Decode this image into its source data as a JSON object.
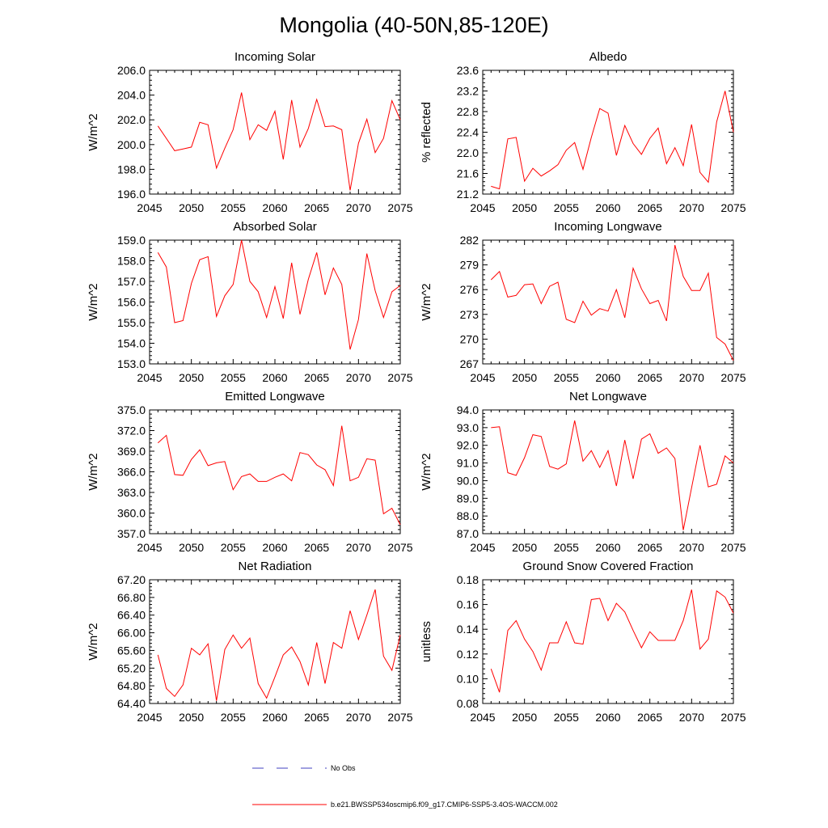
{
  "title": "Mongolia (40-50N,85-120E)",
  "colors": {
    "series": "#ff0000",
    "obs": "#4040c0",
    "axis": "#000000"
  },
  "legend": {
    "obs_label": "No Obs",
    "model_label": "b.e21.BWSSP534oscmip6.f09_g17.CMIP6-SSP5-3.4OS-WACCM.002"
  },
  "chart_data": [
    {
      "type": "line",
      "title": "Incoming Solar",
      "ylabel": "W/m^2",
      "xlim": [
        2045,
        2075
      ],
      "ylim": [
        196,
        206
      ],
      "yticks": [
        "196.0",
        "198.0",
        "200.0",
        "202.0",
        "204.0",
        "206.0"
      ],
      "xticks": [
        "2045",
        "2050",
        "2055",
        "2060",
        "2065",
        "2070",
        "2075"
      ],
      "x": [
        2046,
        2047,
        2048,
        2049,
        2050,
        2051,
        2052,
        2053,
        2054,
        2055,
        2056,
        2057,
        2058,
        2059,
        2060,
        2061,
        2062,
        2063,
        2064,
        2065,
        2066,
        2067,
        2068,
        2069,
        2070,
        2071,
        2072,
        2073,
        2074,
        2075
      ],
      "values": [
        201.5,
        200.5,
        199.5,
        199.65,
        199.8,
        201.8,
        201.6,
        198.1,
        199.7,
        201.2,
        204.2,
        200.4,
        201.6,
        201.15,
        202.7,
        198.8,
        203.6,
        199.8,
        201.3,
        203.65,
        201.45,
        201.5,
        201.2,
        196.3,
        200.1,
        202.05,
        199.35,
        200.5,
        203.55,
        202.0
      ]
    },
    {
      "type": "line",
      "title": "Albedo",
      "ylabel": "% reflected",
      "xlim": [
        2045,
        2075
      ],
      "ylim": [
        21.2,
        23.6
      ],
      "yticks": [
        "21.2",
        "21.6",
        "22.0",
        "22.4",
        "22.8",
        "23.2",
        "23.6"
      ],
      "xticks": [
        "2045",
        "2050",
        "2055",
        "2060",
        "2065",
        "2070",
        "2075"
      ],
      "x": [
        2046,
        2047,
        2048,
        2049,
        2050,
        2051,
        2052,
        2053,
        2054,
        2055,
        2056,
        2057,
        2058,
        2059,
        2060,
        2061,
        2062,
        2063,
        2064,
        2065,
        2066,
        2067,
        2068,
        2069,
        2070,
        2071,
        2072,
        2073,
        2074,
        2075
      ],
      "values": [
        21.35,
        21.3,
        22.27,
        22.3,
        21.45,
        21.7,
        21.55,
        21.65,
        21.77,
        22.05,
        22.2,
        21.68,
        22.3,
        22.86,
        22.77,
        21.95,
        22.53,
        22.18,
        21.97,
        22.28,
        22.48,
        21.79,
        22.1,
        21.75,
        22.55,
        21.62,
        21.43,
        22.6,
        23.2,
        22.4
      ]
    },
    {
      "type": "line",
      "title": "Absorbed Solar",
      "ylabel": "W/m^2",
      "xlim": [
        2045,
        2075
      ],
      "ylim": [
        153,
        159
      ],
      "yticks": [
        "153.0",
        "154.0",
        "155.0",
        "156.0",
        "157.0",
        "158.0",
        "159.0"
      ],
      "xticks": [
        "2045",
        "2050",
        "2055",
        "2060",
        "2065",
        "2070",
        "2075"
      ],
      "x": [
        2046,
        2047,
        2048,
        2049,
        2050,
        2051,
        2052,
        2053,
        2054,
        2055,
        2056,
        2057,
        2058,
        2059,
        2060,
        2061,
        2062,
        2063,
        2064,
        2065,
        2066,
        2067,
        2068,
        2069,
        2070,
        2071,
        2072,
        2073,
        2074,
        2075
      ],
      "values": [
        158.4,
        157.7,
        155.0,
        155.1,
        156.9,
        158.05,
        158.2,
        155.3,
        156.3,
        156.85,
        159.0,
        157.0,
        156.5,
        155.25,
        156.75,
        155.2,
        157.9,
        155.4,
        157.1,
        158.4,
        156.35,
        157.65,
        156.85,
        153.7,
        155.15,
        158.35,
        156.55,
        155.25,
        156.5,
        156.8
      ]
    },
    {
      "type": "line",
      "title": "Incoming Longwave",
      "ylabel": "W/m^2",
      "xlim": [
        2045,
        2075
      ],
      "ylim": [
        267,
        282
      ],
      "yticks": [
        "267",
        "270",
        "273",
        "276",
        "279",
        "282"
      ],
      "xticks": [
        "2045",
        "2050",
        "2055",
        "2060",
        "2065",
        "2070",
        "2075"
      ],
      "x": [
        2046,
        2047,
        2048,
        2049,
        2050,
        2051,
        2052,
        2053,
        2054,
        2055,
        2056,
        2057,
        2058,
        2059,
        2060,
        2061,
        2062,
        2063,
        2064,
        2065,
        2066,
        2067,
        2068,
        2069,
        2070,
        2071,
        2072,
        2073,
        2074,
        2075
      ],
      "values": [
        277.2,
        278.2,
        275.1,
        275.3,
        276.6,
        276.7,
        274.3,
        276.4,
        276.9,
        272.4,
        272.0,
        274.6,
        272.9,
        273.7,
        273.4,
        276.0,
        272.6,
        278.6,
        276.1,
        274.3,
        274.7,
        272.2,
        281.4,
        277.6,
        275.9,
        275.9,
        278.0,
        270.2,
        269.4,
        267.4
      ]
    },
    {
      "type": "line",
      "title": "Emitted Longwave",
      "ylabel": "W/m^2",
      "xlim": [
        2045,
        2075
      ],
      "ylim": [
        357,
        375
      ],
      "yticks": [
        "357.0",
        "360.0",
        "363.0",
        "366.0",
        "369.0",
        "372.0",
        "375.0"
      ],
      "xticks": [
        "2045",
        "2050",
        "2055",
        "2060",
        "2065",
        "2070",
        "2075"
      ],
      "x": [
        2046,
        2047,
        2048,
        2049,
        2050,
        2051,
        2052,
        2053,
        2054,
        2055,
        2056,
        2057,
        2058,
        2059,
        2060,
        2061,
        2062,
        2063,
        2064,
        2065,
        2066,
        2067,
        2068,
        2069,
        2070,
        2071,
        2072,
        2073,
        2074,
        2075
      ],
      "values": [
        370.2,
        371.3,
        365.6,
        365.5,
        367.8,
        369.2,
        366.9,
        367.3,
        367.5,
        363.4,
        365.3,
        365.7,
        364.6,
        364.6,
        365.2,
        365.7,
        364.7,
        368.8,
        368.5,
        367.0,
        366.3,
        364.0,
        372.7,
        364.7,
        365.2,
        367.9,
        367.7,
        359.9,
        360.7,
        358.3
      ]
    },
    {
      "type": "line",
      "title": "Net Longwave",
      "ylabel": "W/m^2",
      "xlim": [
        2045,
        2075
      ],
      "ylim": [
        87,
        94
      ],
      "yticks": [
        "87.0",
        "88.0",
        "89.0",
        "90.0",
        "91.0",
        "92.0",
        "93.0",
        "94.0"
      ],
      "xticks": [
        "2045",
        "2050",
        "2055",
        "2060",
        "2065",
        "2070",
        "2075"
      ],
      "x": [
        2046,
        2047,
        2048,
        2049,
        2050,
        2051,
        2052,
        2053,
        2054,
        2055,
        2056,
        2057,
        2058,
        2059,
        2060,
        2061,
        2062,
        2063,
        2064,
        2065,
        2066,
        2067,
        2068,
        2069,
        2070,
        2071,
        2072,
        2073,
        2074,
        2075
      ],
      "values": [
        93.0,
        93.05,
        90.45,
        90.3,
        91.3,
        92.6,
        92.5,
        90.8,
        90.65,
        90.95,
        93.4,
        91.1,
        91.7,
        90.75,
        91.7,
        89.7,
        92.3,
        90.1,
        92.35,
        92.65,
        91.55,
        91.85,
        91.25,
        87.2,
        89.6,
        92.0,
        89.65,
        89.8,
        91.4,
        91.0
      ]
    },
    {
      "type": "line",
      "title": "Net Radiation",
      "ylabel": "W/m^2",
      "xlim": [
        2045,
        2075
      ],
      "ylim": [
        64.4,
        67.2
      ],
      "yticks": [
        "64.40",
        "64.80",
        "65.20",
        "65.60",
        "66.00",
        "66.40",
        "66.80",
        "67.20"
      ],
      "xticks": [
        "2045",
        "2050",
        "2055",
        "2060",
        "2065",
        "2070",
        "2075"
      ],
      "x": [
        2046,
        2047,
        2048,
        2049,
        2050,
        2051,
        2052,
        2053,
        2054,
        2055,
        2056,
        2057,
        2058,
        2059,
        2060,
        2061,
        2062,
        2063,
        2064,
        2065,
        2066,
        2067,
        2068,
        2069,
        2070,
        2071,
        2072,
        2073,
        2074,
        2075
      ],
      "values": [
        65.5,
        64.74,
        64.56,
        64.82,
        65.65,
        65.5,
        65.75,
        64.46,
        65.62,
        65.95,
        65.65,
        65.88,
        64.85,
        64.52,
        65.0,
        65.5,
        65.68,
        65.35,
        64.82,
        65.78,
        64.85,
        65.78,
        65.65,
        66.5,
        65.85,
        66.4,
        66.98,
        65.47,
        65.15,
        65.95
      ]
    },
    {
      "type": "line",
      "title": "Ground Snow Covered Fraction",
      "ylabel": "unitless",
      "xlim": [
        2045,
        2075
      ],
      "ylim": [
        0.08,
        0.18
      ],
      "yticks": [
        "0.08",
        "0.10",
        "0.12",
        "0.14",
        "0.16",
        "0.18"
      ],
      "xticks": [
        "2045",
        "2050",
        "2055",
        "2060",
        "2065",
        "2070",
        "2075"
      ],
      "x": [
        2046,
        2047,
        2048,
        2049,
        2050,
        2051,
        2052,
        2053,
        2054,
        2055,
        2056,
        2057,
        2058,
        2059,
        2060,
        2061,
        2062,
        2063,
        2064,
        2065,
        2066,
        2067,
        2068,
        2069,
        2070,
        2071,
        2072,
        2073,
        2074,
        2075
      ],
      "values": [
        0.108,
        0.089,
        0.139,
        0.147,
        0.132,
        0.122,
        0.107,
        0.129,
        0.129,
        0.146,
        0.129,
        0.128,
        0.164,
        0.165,
        0.147,
        0.161,
        0.154,
        0.139,
        0.125,
        0.138,
        0.131,
        0.131,
        0.131,
        0.147,
        0.172,
        0.124,
        0.132,
        0.171,
        0.166,
        0.153
      ]
    }
  ]
}
